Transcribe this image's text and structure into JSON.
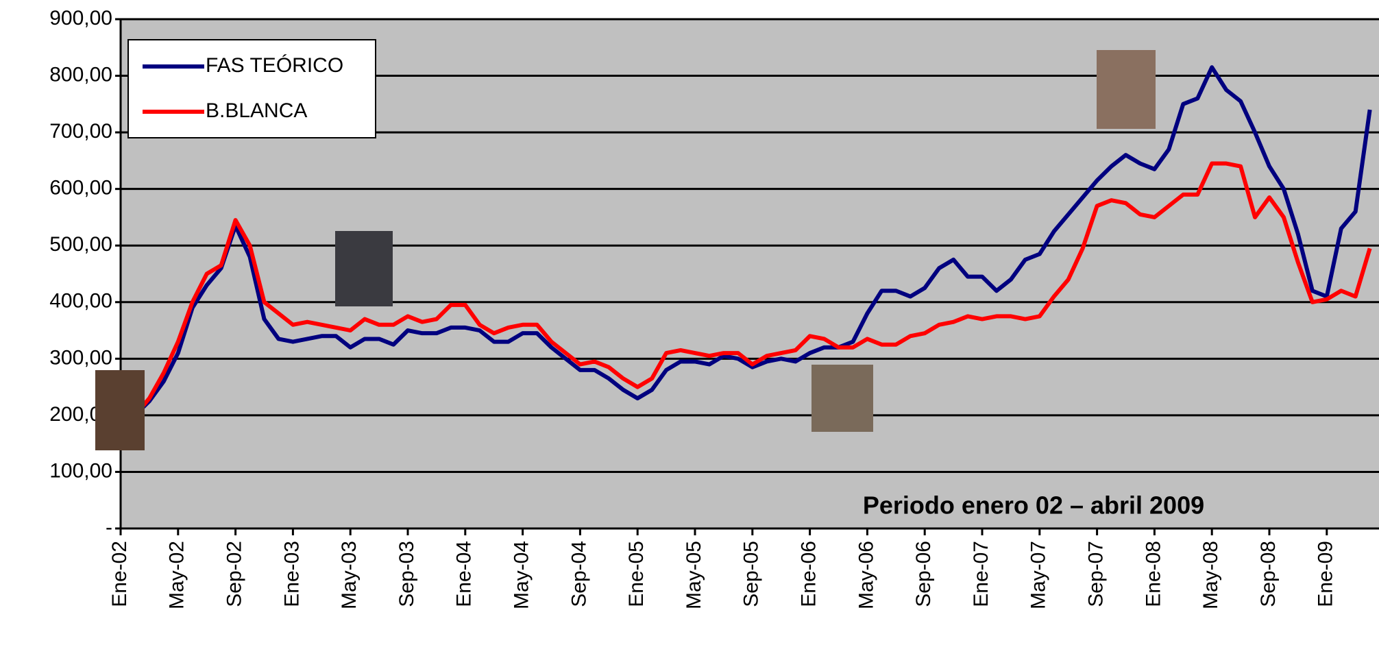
{
  "chart_data": {
    "type": "line",
    "annotation": "Periodo enero 02 – abril 2009",
    "categories": [
      "Ene-02",
      null,
      null,
      null,
      "May-02",
      null,
      null,
      null,
      "Sep-02",
      null,
      null,
      null,
      "Ene-03",
      null,
      null,
      null,
      "May-03",
      null,
      null,
      null,
      "Sep-03",
      null,
      null,
      null,
      "Ene-04",
      null,
      null,
      null,
      "May-04",
      null,
      null,
      null,
      "Sep-04",
      null,
      null,
      null,
      "Ene-05",
      null,
      null,
      null,
      "May-05",
      null,
      null,
      null,
      "Sep-05",
      null,
      null,
      null,
      "Ene-06",
      null,
      null,
      null,
      "May-06",
      null,
      null,
      null,
      "Sep-06",
      null,
      null,
      null,
      "Ene-07",
      null,
      null,
      null,
      "May-07",
      null,
      null,
      null,
      "Sep-07",
      null,
      null,
      null,
      "Ene-08",
      null,
      null,
      null,
      "May-08",
      null,
      null,
      null,
      "Sep-08",
      null,
      null,
      null,
      "Ene-09",
      null,
      null,
      null
    ],
    "series": [
      {
        "name": "FAS TEÓRICO",
        "color": "#00007f",
        "values": [
          null,
          200,
          225,
          260,
          310,
          390,
          430,
          460,
          535,
          480,
          370,
          335,
          330,
          335,
          340,
          340,
          320,
          335,
          335,
          325,
          350,
          345,
          345,
          355,
          355,
          350,
          330,
          330,
          345,
          345,
          320,
          300,
          280,
          280,
          265,
          245,
          230,
          245,
          280,
          295,
          295,
          290,
          305,
          300,
          285,
          295,
          300,
          295,
          310,
          320,
          320,
          330,
          380,
          420,
          420,
          410,
          425,
          460,
          475,
          445,
          445,
          420,
          440,
          475,
          485,
          525,
          555,
          585,
          615,
          640,
          660,
          645,
          635,
          670,
          750,
          760,
          815,
          775,
          755,
          700,
          640,
          600,
          520,
          420,
          410,
          530,
          560,
          740
        ]
      },
      {
        "name": "B.BLANCA",
        "color": "#ff0000",
        "values": [
          null,
          200,
          230,
          275,
          330,
          400,
          450,
          465,
          545,
          500,
          400,
          380,
          360,
          365,
          360,
          355,
          350,
          370,
          360,
          360,
          375,
          365,
          370,
          395,
          395,
          360,
          345,
          355,
          360,
          360,
          330,
          310,
          290,
          295,
          285,
          265,
          250,
          265,
          310,
          315,
          310,
          305,
          310,
          310,
          290,
          305,
          310,
          315,
          340,
          335,
          320,
          320,
          335,
          325,
          325,
          340,
          345,
          360,
          365,
          375,
          370,
          375,
          375,
          370,
          375,
          410,
          440,
          495,
          570,
          580,
          575,
          555,
          550,
          570,
          590,
          590,
          645,
          645,
          640,
          550,
          585,
          550,
          470,
          400,
          405,
          420,
          410,
          495
        ]
      }
    ],
    "ylim": [
      0,
      900
    ],
    "yticks": [
      {
        "value": 0,
        "label": "-"
      },
      {
        "value": 100,
        "label": "100,00"
      },
      {
        "value": 200,
        "label": "200,00"
      },
      {
        "value": 300,
        "label": "300,00"
      },
      {
        "value": 400,
        "label": "400,00"
      },
      {
        "value": 500,
        "label": "500,00"
      },
      {
        "value": 600,
        "label": "600,00"
      },
      {
        "value": 700,
        "label": "700,00"
      },
      {
        "value": 800,
        "label": "800,00"
      },
      {
        "value": 900,
        "label": "900,00"
      }
    ],
    "grid": true,
    "legend": "upper left",
    "background": "#c0c0c0"
  }
}
